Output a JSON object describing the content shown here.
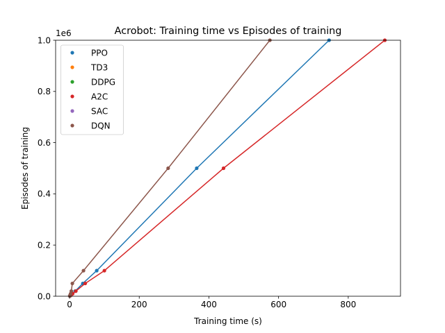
{
  "chart_data": {
    "type": "scatter",
    "title": "Acrobot: Training time vs Episodes of training",
    "xlabel": "Training time (s)",
    "ylabel": "Episodes of training",
    "y_offset_label": "1e6",
    "xlim": [
      -40,
      950
    ],
    "ylim": [
      0,
      1.0
    ],
    "xticks": [
      0,
      200,
      400,
      600,
      800
    ],
    "xtick_labels": [
      "0",
      "200",
      "400",
      "600",
      "800"
    ],
    "yticks": [
      0.0,
      0.2,
      0.4,
      0.6,
      0.8,
      1.0
    ],
    "ytick_labels": [
      "0.0",
      "0.2",
      "0.4",
      "0.6",
      "0.8",
      "1.0"
    ],
    "legend_position": "upper-left",
    "grid": false,
    "series": [
      {
        "name": "PPO",
        "color": "#1f77b4",
        "x": [
          0.8,
          1.6,
          4,
          8,
          16,
          38,
          78,
          365,
          745
        ],
        "y": [
          0.001,
          0.002,
          0.005,
          0.01,
          0.02,
          0.05,
          0.1,
          0.5,
          1.0
        ]
      },
      {
        "name": "TD3",
        "color": "#ff7f0e",
        "x": [],
        "y": []
      },
      {
        "name": "DDPG",
        "color": "#2ca02c",
        "x": [],
        "y": []
      },
      {
        "name": "A2C",
        "color": "#d62728",
        "x": [
          1,
          2,
          4.5,
          9,
          18,
          45,
          100,
          442,
          905
        ],
        "y": [
          0.001,
          0.002,
          0.005,
          0.01,
          0.02,
          0.05,
          0.1,
          0.5,
          1.0
        ]
      },
      {
        "name": "SAC",
        "color": "#9467bd",
        "x": [],
        "y": []
      },
      {
        "name": "DQN",
        "color": "#8c564b",
        "x": [
          0.5,
          1,
          1.8,
          3,
          5,
          8,
          40,
          283,
          575
        ],
        "y": [
          0.001,
          0.002,
          0.005,
          0.01,
          0.02,
          0.05,
          0.1,
          0.5,
          1.0
        ]
      }
    ]
  }
}
